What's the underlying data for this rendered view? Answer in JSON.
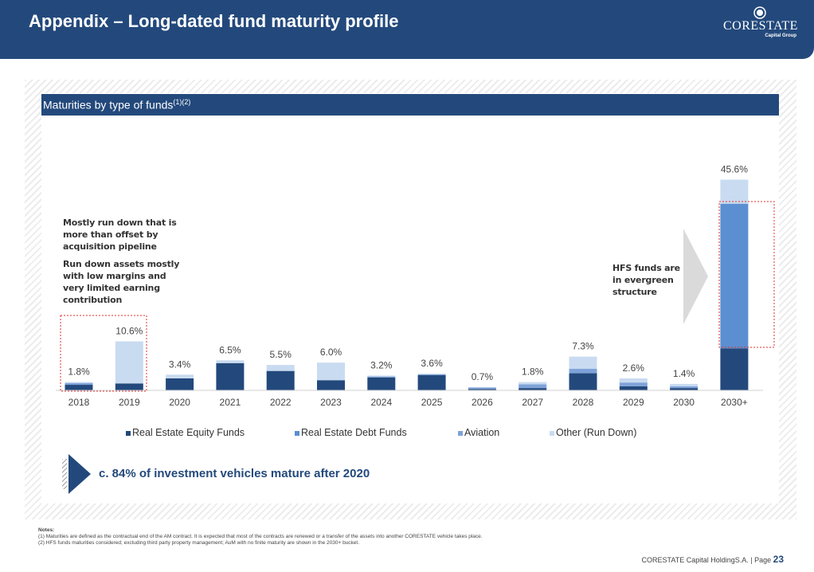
{
  "header": {
    "title": "Appendix – Long-dated fund maturity profile",
    "logo_name": "CORESTATE",
    "logo_sub": "Capital Group"
  },
  "section": {
    "title": "Maturities by type of funds",
    "superscript": "(1)(2)"
  },
  "annotations": {
    "left_line1": "Mostly run down that is",
    "left_line2": "more than offset by",
    "left_line3": "acquisition pipeline",
    "left_line4": "Run down assets mostly",
    "left_line5": "with low margins and",
    "left_line6": "very limited earning",
    "left_line7": "contribution",
    "right_line1": "HFS funds are",
    "right_line2": "in evergreen",
    "right_line3": "structure"
  },
  "colors": {
    "equity": "#23497c",
    "debt": "#5b8fd2",
    "aviation": "#7fa3d8",
    "other": "#c9dbf0",
    "header": "#23497c",
    "highlight_box": "#e03030"
  },
  "chart_data": {
    "type": "bar",
    "stacked": true,
    "categories": [
      "2018",
      "2019",
      "2020",
      "2021",
      "2022",
      "2023",
      "2024",
      "2025",
      "2026",
      "2027",
      "2028",
      "2029",
      "2030",
      "2030+"
    ],
    "totals_labels": [
      "1.8%",
      "10.6%",
      "3.4%",
      "6.5%",
      "5.5%",
      "6.0%",
      "3.2%",
      "3.6%",
      "0.7%",
      "1.8%",
      "7.3%",
      "2.6%",
      "1.4%",
      "45.6%"
    ],
    "series": [
      {
        "name": "Real Estate Equity Funds",
        "values": [
          1.2,
          1.5,
          2.6,
          5.9,
          4.2,
          2.2,
          2.8,
          3.3,
          0.3,
          0.5,
          3.7,
          0.9,
          0.5,
          9.1
        ]
      },
      {
        "name": "Real Estate Debt Funds",
        "values": [
          0,
          0,
          0,
          0,
          0,
          0,
          0,
          0,
          0,
          0,
          0,
          0,
          0,
          31.3
        ]
      },
      {
        "name": "Aviation",
        "values": [
          0.4,
          0,
          0,
          0,
          0,
          0,
          0.2,
          0.2,
          0.3,
          0.8,
          1.0,
          0.8,
          0.4,
          0
        ]
      },
      {
        "name": "Other (Run Down)",
        "values": [
          0.2,
          9.1,
          0.8,
          0.6,
          1.3,
          3.8,
          0.2,
          0.1,
          0.1,
          0.5,
          2.6,
          0.9,
          0.5,
          5.2
        ]
      }
    ],
    "ylim": [
      0,
      48
    ],
    "legend": "bottom",
    "grid": false
  },
  "legend": {
    "equity": "Real Estate Equity Funds",
    "debt": "Real Estate Debt Funds",
    "aviation": "Aviation",
    "other": "Other (Run Down)"
  },
  "callout": {
    "text": "c. 84% of investment vehicles mature after 2020"
  },
  "notes": {
    "title": "Notes:",
    "line1": "(1) Maturities are defined as the contractual end of the AM contract. It is expected that most of the contracts are renewed or a transfer of the assets into another CORESTATE vehicle takes place.",
    "line2": "(2) HFS funds maturities considered; excluding third party property management; AuM with no finite maturity are shown in the 2030+ bucket."
  },
  "footer": {
    "company": "CORESTATE Capital HoldingS.A.  |  Page",
    "page": "23"
  }
}
